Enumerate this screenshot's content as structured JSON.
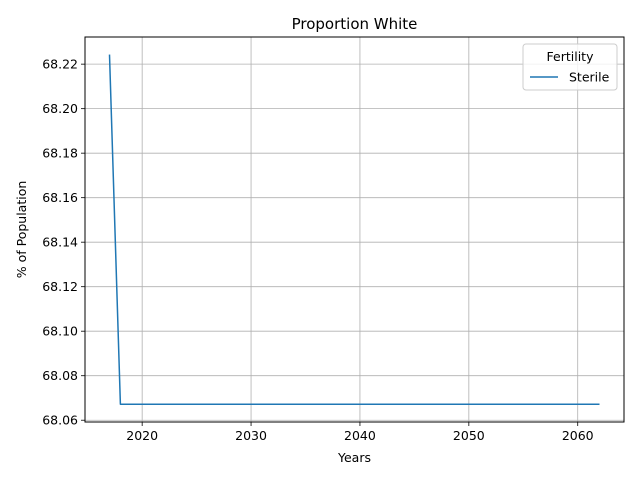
{
  "chart_data": {
    "type": "line",
    "title": "Proportion White",
    "xlabel": "Years",
    "ylabel": "% of Population",
    "xlim": [
      2014.75,
      2064.25
    ],
    "ylim": [
      68.0592,
      68.2322
    ],
    "xticks": [
      2020,
      2030,
      2040,
      2050,
      2060
    ],
    "yticks": [
      68.06,
      68.08,
      68.1,
      68.12,
      68.14,
      68.16,
      68.18,
      68.2,
      68.22
    ],
    "grid": true,
    "legend": {
      "title": "Fertility",
      "placement": "top-right"
    },
    "series": [
      {
        "name": "Sterile",
        "color": "#1f77b4",
        "x": [
          2017,
          2018,
          2020,
          2025,
          2030,
          2035,
          2040,
          2045,
          2050,
          2055,
          2060,
          2062
        ],
        "y": [
          68.2243,
          68.0672,
          68.0672,
          68.0672,
          68.0672,
          68.0672,
          68.0672,
          68.0672,
          68.0672,
          68.0672,
          68.0672,
          68.0672
        ]
      }
    ]
  }
}
